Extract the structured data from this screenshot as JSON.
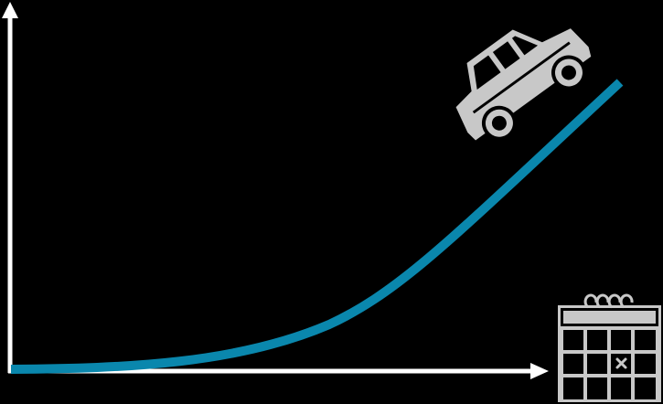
{
  "diagram": {
    "type": "growth-curve",
    "background": "#000000",
    "axis_color": "#ffffff",
    "curve_color": "#0a87ad",
    "icon_fill": "#c8c8c8",
    "icons": {
      "car": "car-icon",
      "calendar": "calendar-icon",
      "calendar_mark": "x"
    }
  }
}
